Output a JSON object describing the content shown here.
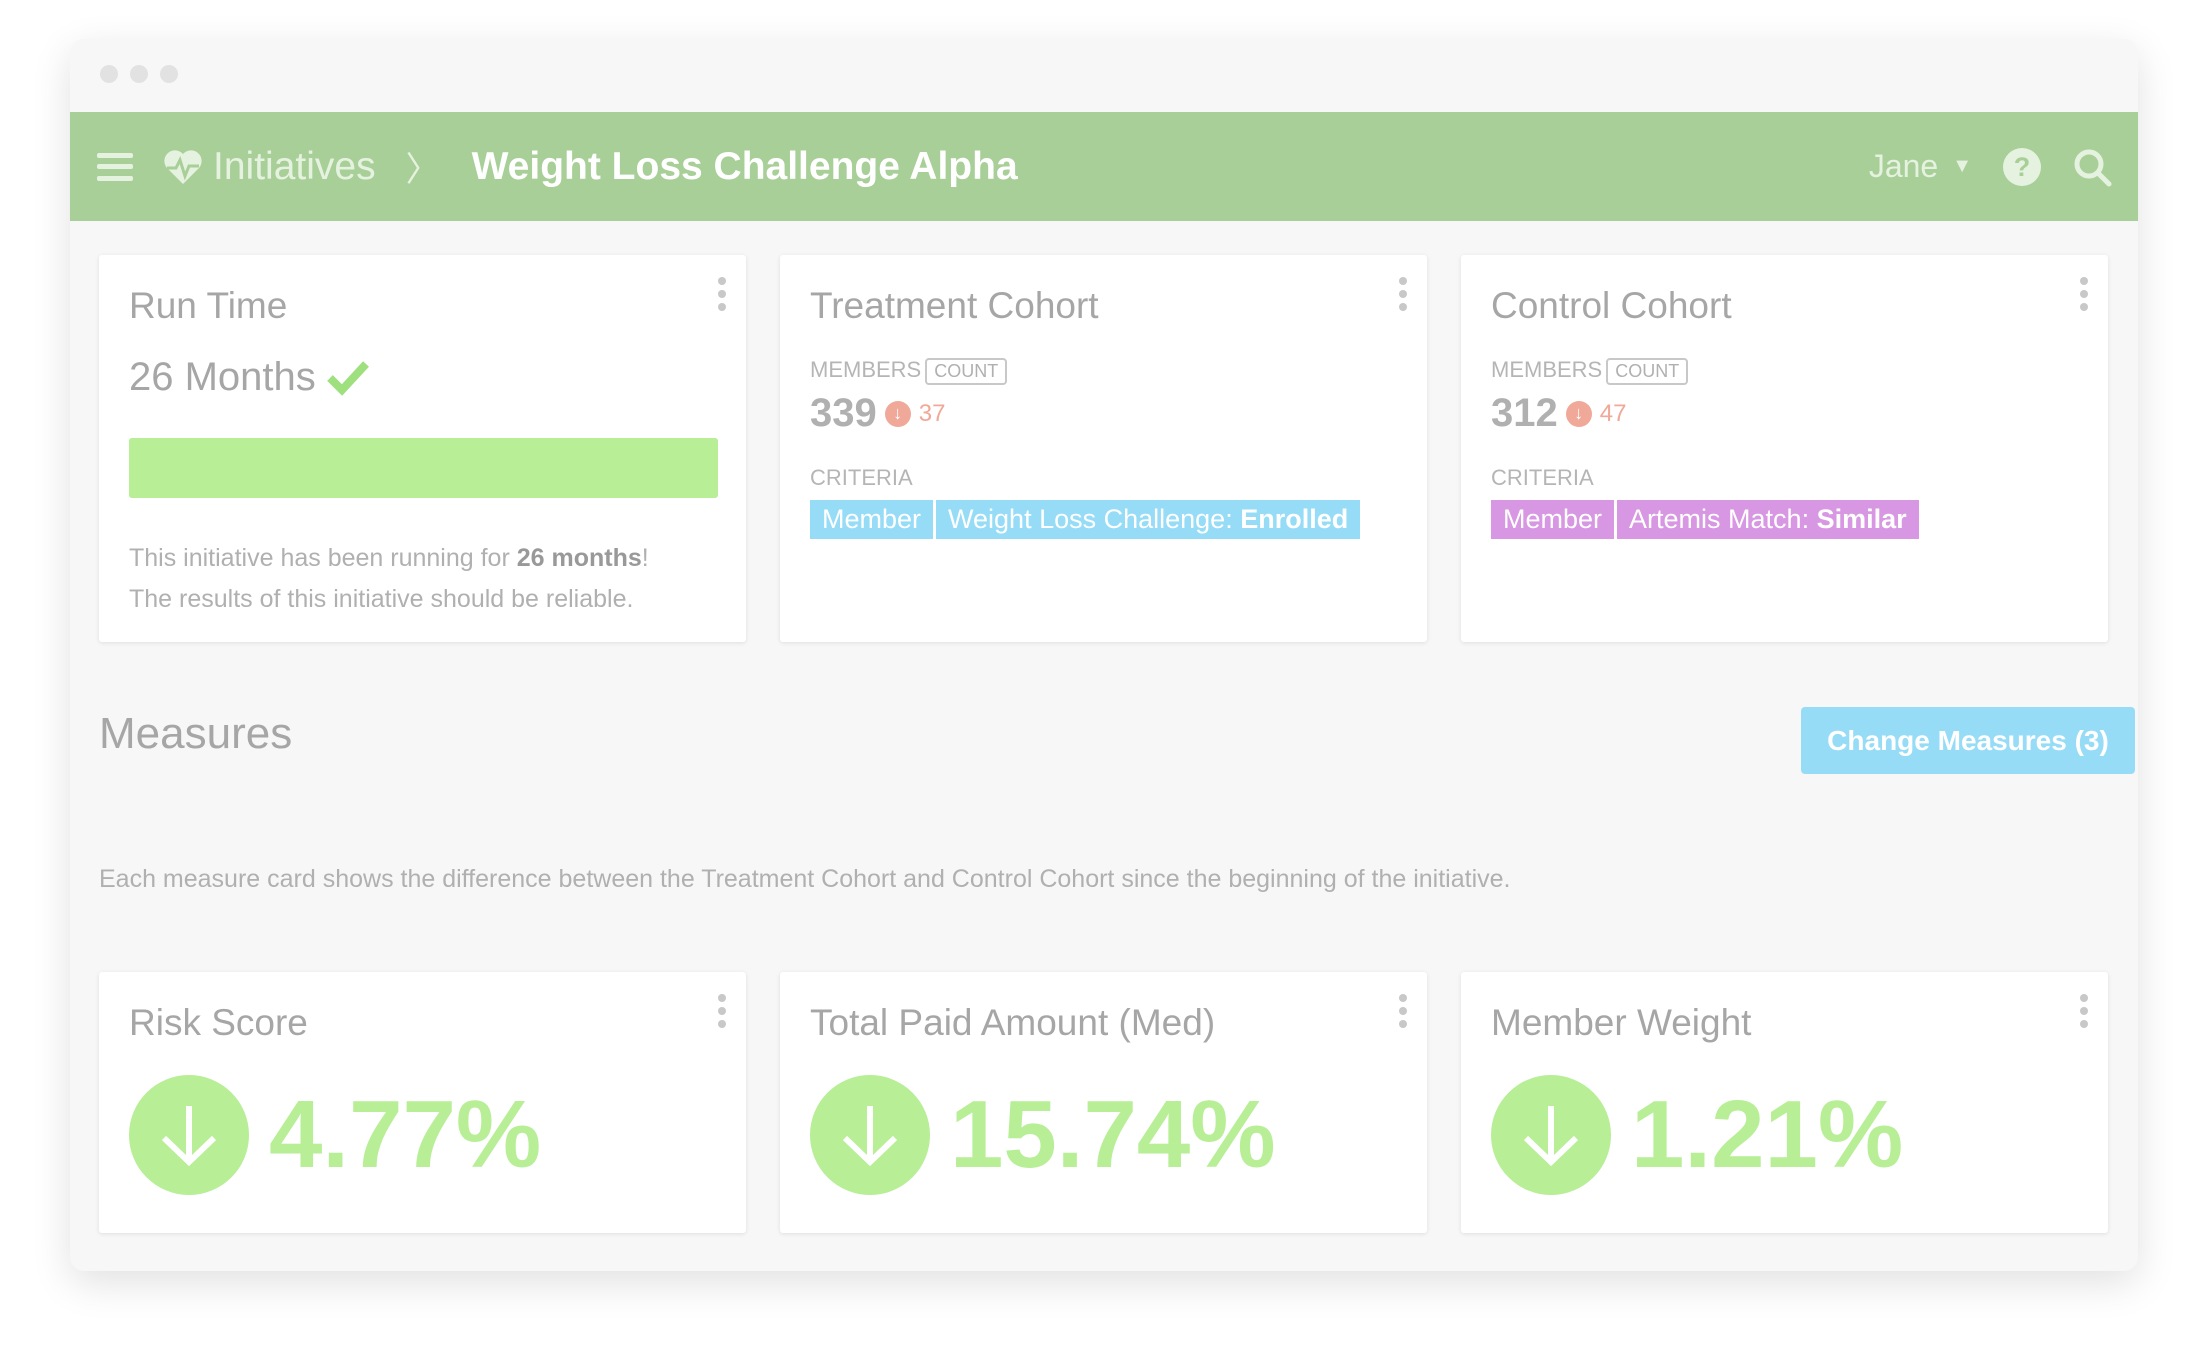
{
  "header": {
    "breadcrumb_root": "Initiatives",
    "title": "Weight Loss Challenge Alpha",
    "user": "Jane",
    "color": "#a8cf98"
  },
  "run_time": {
    "title": "Run Time",
    "value": "26 Months",
    "progress_percent": 100,
    "desc_pre": "This initiative has been running for ",
    "desc_bold": "26 months",
    "desc_post": "!",
    "desc_line2": "The results of this initiative should be reliable."
  },
  "treatment": {
    "title": "Treatment Cohort",
    "members_label": "MEMBERS",
    "count_label": "COUNT",
    "count": "339",
    "delta": "37",
    "criteria_label": "CRITERIA",
    "tag1": "Member",
    "tag2_pre": "Weight Loss Challenge: ",
    "tag2_bold": "Enrolled",
    "color": "#97dcf7"
  },
  "control": {
    "title": "Control Cohort",
    "members_label": "MEMBERS",
    "count_label": "COUNT",
    "count": "312",
    "delta": "47",
    "criteria_label": "CRITERIA",
    "tag1": "Member",
    "tag2_pre": "Artemis Match: ",
    "tag2_bold": "Similar",
    "color": "#d797e2"
  },
  "measures": {
    "title": "Measures",
    "button": "Change Measures (3)",
    "description": "Each measure card shows the difference between the Treatment Cohort and Control Cohort since the beginning of the initiative.",
    "cards": [
      {
        "title": "Risk Score",
        "value": "4.77%",
        "direction": "down"
      },
      {
        "title": "Total Paid Amount (Med)",
        "value": "15.74%",
        "direction": "down"
      },
      {
        "title": "Member Weight",
        "value": "1.21%",
        "direction": "down"
      }
    ]
  }
}
